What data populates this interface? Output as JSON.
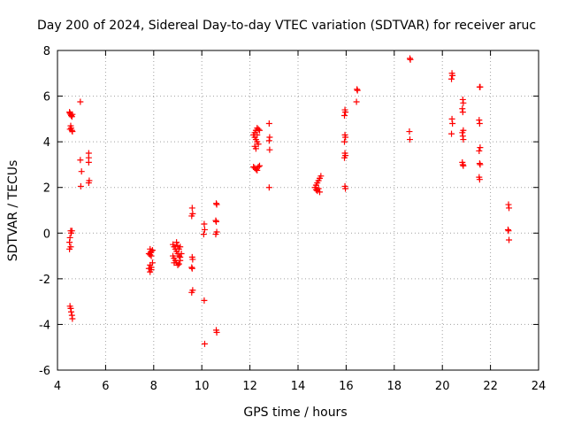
{
  "chart_data": {
    "type": "scatter",
    "title": "Day 200 of 2024, Sidereal Day-to-day VTEC variation (SDTVAR) for receiver aruc",
    "xlabel": "GPS time / hours",
    "ylabel": "SDTVAR / TECUs",
    "xlim": [
      4,
      24
    ],
    "ylim": [
      -6,
      8
    ],
    "xticks": [
      4,
      6,
      8,
      10,
      12,
      14,
      16,
      18,
      20,
      22,
      24
    ],
    "yticks": [
      -6,
      -4,
      -2,
      0,
      2,
      4,
      6,
      8
    ],
    "grid": true,
    "marker": "+",
    "color": "#ff0000",
    "series": [
      {
        "name": "SDTVAR",
        "points": [
          [
            4.5,
            5.3
          ],
          [
            4.52,
            5.25
          ],
          [
            4.55,
            5.2
          ],
          [
            4.57,
            5.15
          ],
          [
            4.6,
            5.1
          ],
          [
            4.62,
            5.2
          ],
          [
            4.55,
            4.7
          ],
          [
            4.57,
            4.6
          ],
          [
            4.6,
            4.5
          ],
          [
            4.62,
            4.45
          ],
          [
            4.52,
            4.55
          ],
          [
            4.55,
            0.1
          ],
          [
            4.57,
            0.0
          ],
          [
            4.52,
            -0.2
          ],
          [
            4.5,
            -0.4
          ],
          [
            4.55,
            -0.6
          ],
          [
            4.5,
            -0.7
          ],
          [
            4.6,
            0.1
          ],
          [
            4.52,
            -3.2
          ],
          [
            4.55,
            -3.3
          ],
          [
            4.57,
            -3.45
          ],
          [
            4.6,
            -3.6
          ],
          [
            4.62,
            -3.75
          ],
          [
            4.95,
            5.75
          ],
          [
            4.95,
            3.2
          ],
          [
            5.0,
            2.7
          ],
          [
            4.97,
            2.05
          ],
          [
            5.3,
            3.5
          ],
          [
            5.3,
            3.3
          ],
          [
            5.3,
            3.1
          ],
          [
            5.32,
            2.3
          ],
          [
            5.3,
            2.2
          ],
          [
            7.85,
            -0.7
          ],
          [
            7.9,
            -0.8
          ],
          [
            7.8,
            -0.9
          ],
          [
            7.85,
            -0.95
          ],
          [
            7.95,
            -0.75
          ],
          [
            7.9,
            -1.0
          ],
          [
            7.85,
            -1.4
          ],
          [
            7.9,
            -1.5
          ],
          [
            7.8,
            -1.55
          ],
          [
            7.85,
            -1.7
          ],
          [
            7.9,
            -1.6
          ],
          [
            7.95,
            -1.3
          ],
          [
            7.87,
            -0.85
          ],
          [
            8.8,
            -0.5
          ],
          [
            8.85,
            -0.6
          ],
          [
            8.9,
            -0.7
          ],
          [
            8.95,
            -0.8
          ],
          [
            9.0,
            -0.9
          ],
          [
            9.05,
            -1.0
          ],
          [
            8.85,
            -1.1
          ],
          [
            8.9,
            -1.2
          ],
          [
            8.95,
            -1.3
          ],
          [
            9.0,
            -1.4
          ],
          [
            9.05,
            -1.35
          ],
          [
            9.1,
            -1.2
          ],
          [
            9.15,
            -0.9
          ],
          [
            9.1,
            -0.6
          ],
          [
            8.8,
            -1.0
          ],
          [
            8.85,
            -1.3
          ],
          [
            8.95,
            -0.4
          ],
          [
            9.0,
            -0.55
          ],
          [
            9.05,
            -0.7
          ],
          [
            9.1,
            -1.05
          ],
          [
            9.6,
            1.1
          ],
          [
            9.62,
            0.85
          ],
          [
            9.58,
            0.75
          ],
          [
            9.6,
            -1.05
          ],
          [
            9.62,
            -1.15
          ],
          [
            9.58,
            -1.5
          ],
          [
            9.6,
            -1.55
          ],
          [
            9.62,
            -2.5
          ],
          [
            9.58,
            -2.6
          ],
          [
            10.1,
            0.4
          ],
          [
            10.12,
            0.15
          ],
          [
            10.08,
            -0.05
          ],
          [
            10.1,
            -2.95
          ],
          [
            10.12,
            -4.85
          ],
          [
            10.6,
            1.3
          ],
          [
            10.62,
            1.25
          ],
          [
            10.58,
            0.55
          ],
          [
            10.6,
            0.5
          ],
          [
            10.62,
            0.05
          ],
          [
            10.58,
            -0.05
          ],
          [
            10.6,
            -4.25
          ],
          [
            10.62,
            -4.35
          ],
          [
            12.15,
            4.3
          ],
          [
            12.2,
            4.4
          ],
          [
            12.25,
            4.5
          ],
          [
            12.3,
            4.6
          ],
          [
            12.35,
            4.55
          ],
          [
            12.2,
            4.2
          ],
          [
            12.25,
            4.1
          ],
          [
            12.3,
            4.0
          ],
          [
            12.35,
            3.9
          ],
          [
            12.2,
            3.8
          ],
          [
            12.25,
            3.7
          ],
          [
            12.3,
            4.3
          ],
          [
            12.15,
            2.9
          ],
          [
            12.2,
            2.85
          ],
          [
            12.25,
            2.8
          ],
          [
            12.3,
            2.75
          ],
          [
            12.35,
            2.9
          ],
          [
            12.4,
            2.95
          ],
          [
            12.4,
            4.5
          ],
          [
            12.8,
            4.8
          ],
          [
            12.82,
            4.2
          ],
          [
            12.8,
            4.05
          ],
          [
            12.82,
            3.65
          ],
          [
            12.8,
            2.0
          ],
          [
            14.7,
            2.0
          ],
          [
            14.75,
            2.1
          ],
          [
            14.8,
            2.2
          ],
          [
            14.85,
            2.3
          ],
          [
            14.9,
            2.4
          ],
          [
            14.95,
            2.5
          ],
          [
            14.75,
            1.9
          ],
          [
            14.8,
            1.85
          ],
          [
            14.85,
            1.95
          ],
          [
            14.9,
            1.8
          ],
          [
            15.95,
            5.4
          ],
          [
            15.97,
            5.3
          ],
          [
            15.93,
            5.15
          ],
          [
            15.95,
            4.3
          ],
          [
            15.97,
            4.2
          ],
          [
            15.93,
            4.0
          ],
          [
            15.95,
            3.5
          ],
          [
            15.97,
            3.4
          ],
          [
            15.93,
            3.3
          ],
          [
            15.95,
            2.05
          ],
          [
            15.97,
            1.95
          ],
          [
            16.45,
            6.3
          ],
          [
            16.47,
            6.25
          ],
          [
            16.43,
            5.75
          ],
          [
            18.65,
            7.65
          ],
          [
            18.67,
            7.6
          ],
          [
            18.63,
            4.45
          ],
          [
            18.65,
            4.1
          ],
          [
            20.4,
            7.0
          ],
          [
            20.42,
            6.9
          ],
          [
            20.38,
            6.75
          ],
          [
            20.4,
            5.0
          ],
          [
            20.42,
            4.8
          ],
          [
            20.38,
            4.35
          ],
          [
            20.85,
            5.85
          ],
          [
            20.87,
            5.7
          ],
          [
            20.83,
            5.45
          ],
          [
            20.85,
            5.3
          ],
          [
            20.87,
            4.5
          ],
          [
            20.83,
            4.4
          ],
          [
            20.85,
            4.25
          ],
          [
            20.87,
            4.1
          ],
          [
            20.83,
            3.1
          ],
          [
            20.85,
            3.0
          ],
          [
            20.87,
            2.95
          ],
          [
            21.55,
            6.4
          ],
          [
            21.57,
            6.4
          ],
          [
            21.53,
            4.95
          ],
          [
            21.55,
            4.8
          ],
          [
            21.57,
            3.75
          ],
          [
            21.53,
            3.6
          ],
          [
            21.55,
            3.05
          ],
          [
            21.57,
            3.0
          ],
          [
            21.53,
            2.45
          ],
          [
            21.55,
            2.35
          ],
          [
            22.75,
            1.25
          ],
          [
            22.77,
            1.1
          ],
          [
            22.73,
            0.15
          ],
          [
            22.75,
            0.1
          ],
          [
            22.77,
            -0.3
          ]
        ]
      }
    ]
  }
}
